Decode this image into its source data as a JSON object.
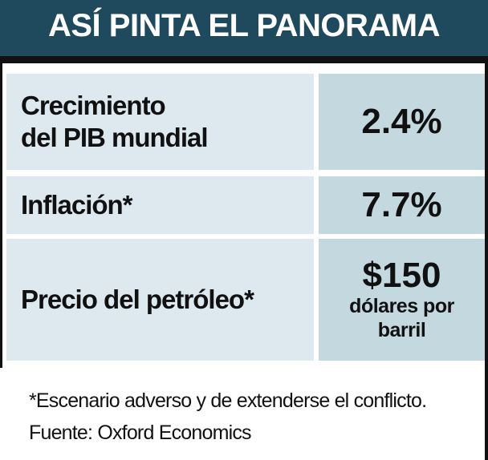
{
  "header": {
    "title": "ASÍ PINTA EL PANORAMA"
  },
  "table": {
    "rows": [
      {
        "label": [
          "Crecimiento",
          "del PIB mundial"
        ],
        "value": "2.4%"
      },
      {
        "label": [
          "Inflación*"
        ],
        "value": "7.7%"
      },
      {
        "label": [
          "Precio del petróleo*"
        ],
        "value": "$150",
        "note": "dólares por barril"
      }
    ]
  },
  "footnote": "*Escenario adverso y de extenderse el conflicto. Fuente: Oxford Economics"
}
